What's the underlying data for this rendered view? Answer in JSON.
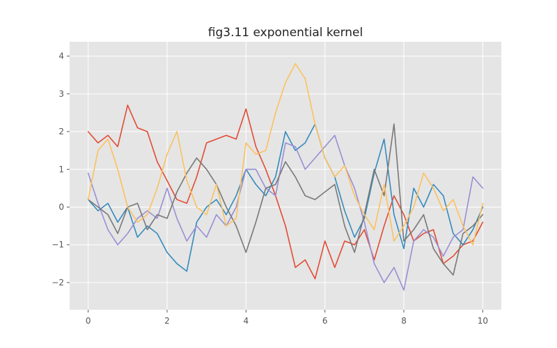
{
  "chart_data": {
    "type": "line",
    "title": "fig3.11 exponential kernel",
    "xlabel": "",
    "ylabel": "",
    "xlim": [
      -0.47,
      10.47
    ],
    "ylim": [
      -2.72,
      4.38
    ],
    "xticks": [
      0,
      2,
      4,
      6,
      8,
      10
    ],
    "yticks": [
      -2,
      -1,
      0,
      1,
      2,
      3,
      4
    ],
    "grid": true,
    "legend": "none",
    "series": [
      {
        "color": "#e24a33",
        "x": [
          0,
          0.25,
          0.5,
          0.75,
          1,
          1.25,
          1.5,
          1.75,
          2,
          2.25,
          2.5,
          2.75,
          3,
          3.25,
          3.5,
          3.75,
          4,
          4.25,
          4.5,
          4.75,
          5,
          5.25,
          5.5,
          5.75,
          6,
          6.25,
          6.5,
          6.75,
          7,
          7.25,
          7.5,
          7.75,
          8,
          8.25,
          8.5,
          8.75,
          9,
          9.25,
          9.5,
          9.75,
          10
        ],
        "y": [
          2.0,
          1.7,
          1.9,
          1.6,
          2.7,
          2.1,
          2.0,
          1.2,
          0.7,
          0.2,
          0.1,
          0.8,
          1.7,
          1.8,
          1.9,
          1.8,
          2.6,
          1.6,
          1.0,
          0.3,
          -0.5,
          -1.6,
          -1.4,
          -1.9,
          -0.9,
          -1.6,
          -0.9,
          -1.0,
          -0.6,
          -1.4,
          -0.5,
          0.3,
          -0.2,
          -0.9,
          -0.7,
          -0.6,
          -1.5,
          -1.3,
          -1.0,
          -0.9,
          -0.4
        ]
      },
      {
        "color": "#348abd",
        "x": [
          0,
          0.25,
          0.5,
          0.75,
          1,
          1.25,
          1.5,
          1.75,
          2,
          2.25,
          2.5,
          2.75,
          3,
          3.25,
          3.5,
          3.75,
          4,
          4.25,
          4.5,
          4.75,
          5,
          5.25,
          5.5,
          5.75,
          6,
          6.25,
          6.5,
          6.75,
          7,
          7.25,
          7.5,
          7.75,
          8,
          8.25,
          8.5,
          8.75,
          9,
          9.25,
          9.5,
          9.75,
          10
        ],
        "y": [
          0.2,
          -0.1,
          0.1,
          -0.4,
          0.0,
          -0.8,
          -0.5,
          -0.7,
          -1.2,
          -1.5,
          -1.7,
          -0.4,
          0.0,
          0.2,
          -0.2,
          0.3,
          1.0,
          0.6,
          0.3,
          0.8,
          2.0,
          1.5,
          1.7,
          2.2,
          1.3,
          0.8,
          -0.1,
          -0.8,
          -0.3,
          0.9,
          1.8,
          -0.2,
          -1.1,
          0.5,
          0.0,
          0.6,
          0.3,
          -0.7,
          -1.0,
          -0.6,
          0.0
        ]
      },
      {
        "color": "#988ed5",
        "x": [
          0,
          0.25,
          0.5,
          0.75,
          1,
          1.25,
          1.5,
          1.75,
          2,
          2.25,
          2.5,
          2.75,
          3,
          3.25,
          3.5,
          3.75,
          4,
          4.25,
          4.5,
          4.75,
          5,
          5.25,
          5.5,
          5.75,
          6,
          6.25,
          6.5,
          6.75,
          7,
          7.25,
          7.5,
          7.75,
          8,
          8.25,
          8.5,
          8.75,
          9,
          9.25,
          9.5,
          9.75,
          10
        ],
        "y": [
          0.9,
          0.1,
          -0.6,
          -1.0,
          -0.7,
          -0.3,
          -0.1,
          -0.3,
          0.5,
          -0.3,
          -0.9,
          -0.5,
          -0.8,
          -0.2,
          -0.5,
          0.0,
          1.0,
          1.0,
          0.5,
          0.3,
          1.7,
          1.6,
          1.0,
          1.3,
          1.6,
          1.9,
          1.1,
          0.5,
          -0.4,
          -1.5,
          -2.0,
          -1.6,
          -2.2,
          -0.9,
          -0.6,
          -0.8,
          -1.3,
          -0.8,
          -0.6,
          0.8,
          0.5
        ]
      },
      {
        "color": "#777777",
        "x": [
          0,
          0.25,
          0.5,
          0.75,
          1,
          1.25,
          1.5,
          1.75,
          2,
          2.25,
          2.5,
          2.75,
          3,
          3.25,
          3.5,
          3.75,
          4,
          4.25,
          4.5,
          4.75,
          5,
          5.25,
          5.5,
          5.75,
          6,
          6.25,
          6.5,
          6.75,
          7,
          7.25,
          7.5,
          7.75,
          8,
          8.25,
          8.5,
          8.75,
          9,
          9.25,
          9.5,
          9.75,
          10
        ],
        "y": [
          0.2,
          0.0,
          -0.2,
          -0.7,
          0.0,
          0.1,
          -0.6,
          -0.2,
          -0.3,
          0.4,
          0.9,
          1.3,
          1.0,
          0.6,
          0.0,
          -0.5,
          -1.2,
          -0.4,
          0.5,
          0.6,
          1.2,
          0.8,
          0.3,
          0.2,
          0.4,
          0.6,
          -0.5,
          -1.2,
          -0.2,
          1.0,
          0.3,
          2.2,
          -0.9,
          -0.6,
          -0.2,
          -1.1,
          -1.5,
          -1.8,
          -0.7,
          -0.5,
          -0.2
        ]
      },
      {
        "color": "#fbc15e",
        "x": [
          0,
          0.25,
          0.5,
          0.75,
          1,
          1.25,
          1.5,
          1.75,
          2,
          2.25,
          2.5,
          2.75,
          3,
          3.25,
          3.5,
          3.75,
          4,
          4.25,
          4.5,
          4.75,
          5,
          5.25,
          5.5,
          5.75,
          6,
          6.25,
          6.5,
          6.75,
          7,
          7.25,
          7.5,
          7.75,
          8,
          8.25,
          8.5,
          8.75,
          9,
          9.25,
          9.5,
          9.75,
          10
        ],
        "y": [
          0.2,
          1.5,
          1.8,
          1.0,
          0.0,
          -0.4,
          -0.2,
          0.5,
          1.4,
          2.0,
          0.7,
          0.0,
          -0.2,
          0.6,
          -0.5,
          -0.3,
          1.7,
          1.4,
          1.5,
          2.5,
          3.3,
          3.8,
          3.4,
          2.2,
          1.3,
          0.8,
          1.1,
          0.3,
          -0.2,
          -0.6,
          0.6,
          -0.9,
          -0.5,
          0.0,
          0.9,
          0.5,
          -0.1,
          0.2,
          -0.5,
          -1.0,
          0.1
        ]
      }
    ]
  }
}
